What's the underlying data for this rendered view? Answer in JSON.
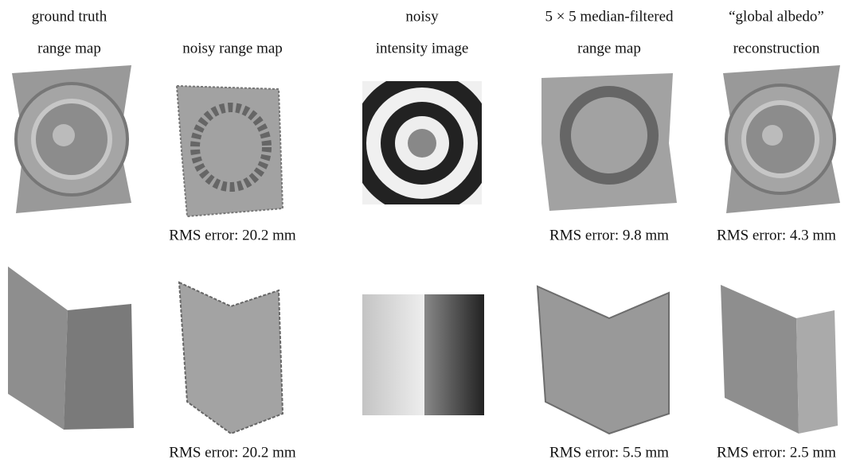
{
  "headers": [
    [
      "ground truth",
      "range map"
    ],
    [
      "noisy range map"
    ],
    [
      "noisy",
      "intensity image"
    ],
    [
      "5 × 5 median-filtered",
      "range map"
    ],
    [
      "“global albedo”",
      "reconstruction"
    ]
  ],
  "captions": [
    [
      "RMS error: 20.2 mm",
      "RMS error: 9.8 mm",
      "RMS error: 4.3 mm"
    ],
    [
      "RMS error: 20.2 mm",
      "RMS error: 5.5 mm",
      "RMS error: 2.5 mm"
    ]
  ]
}
